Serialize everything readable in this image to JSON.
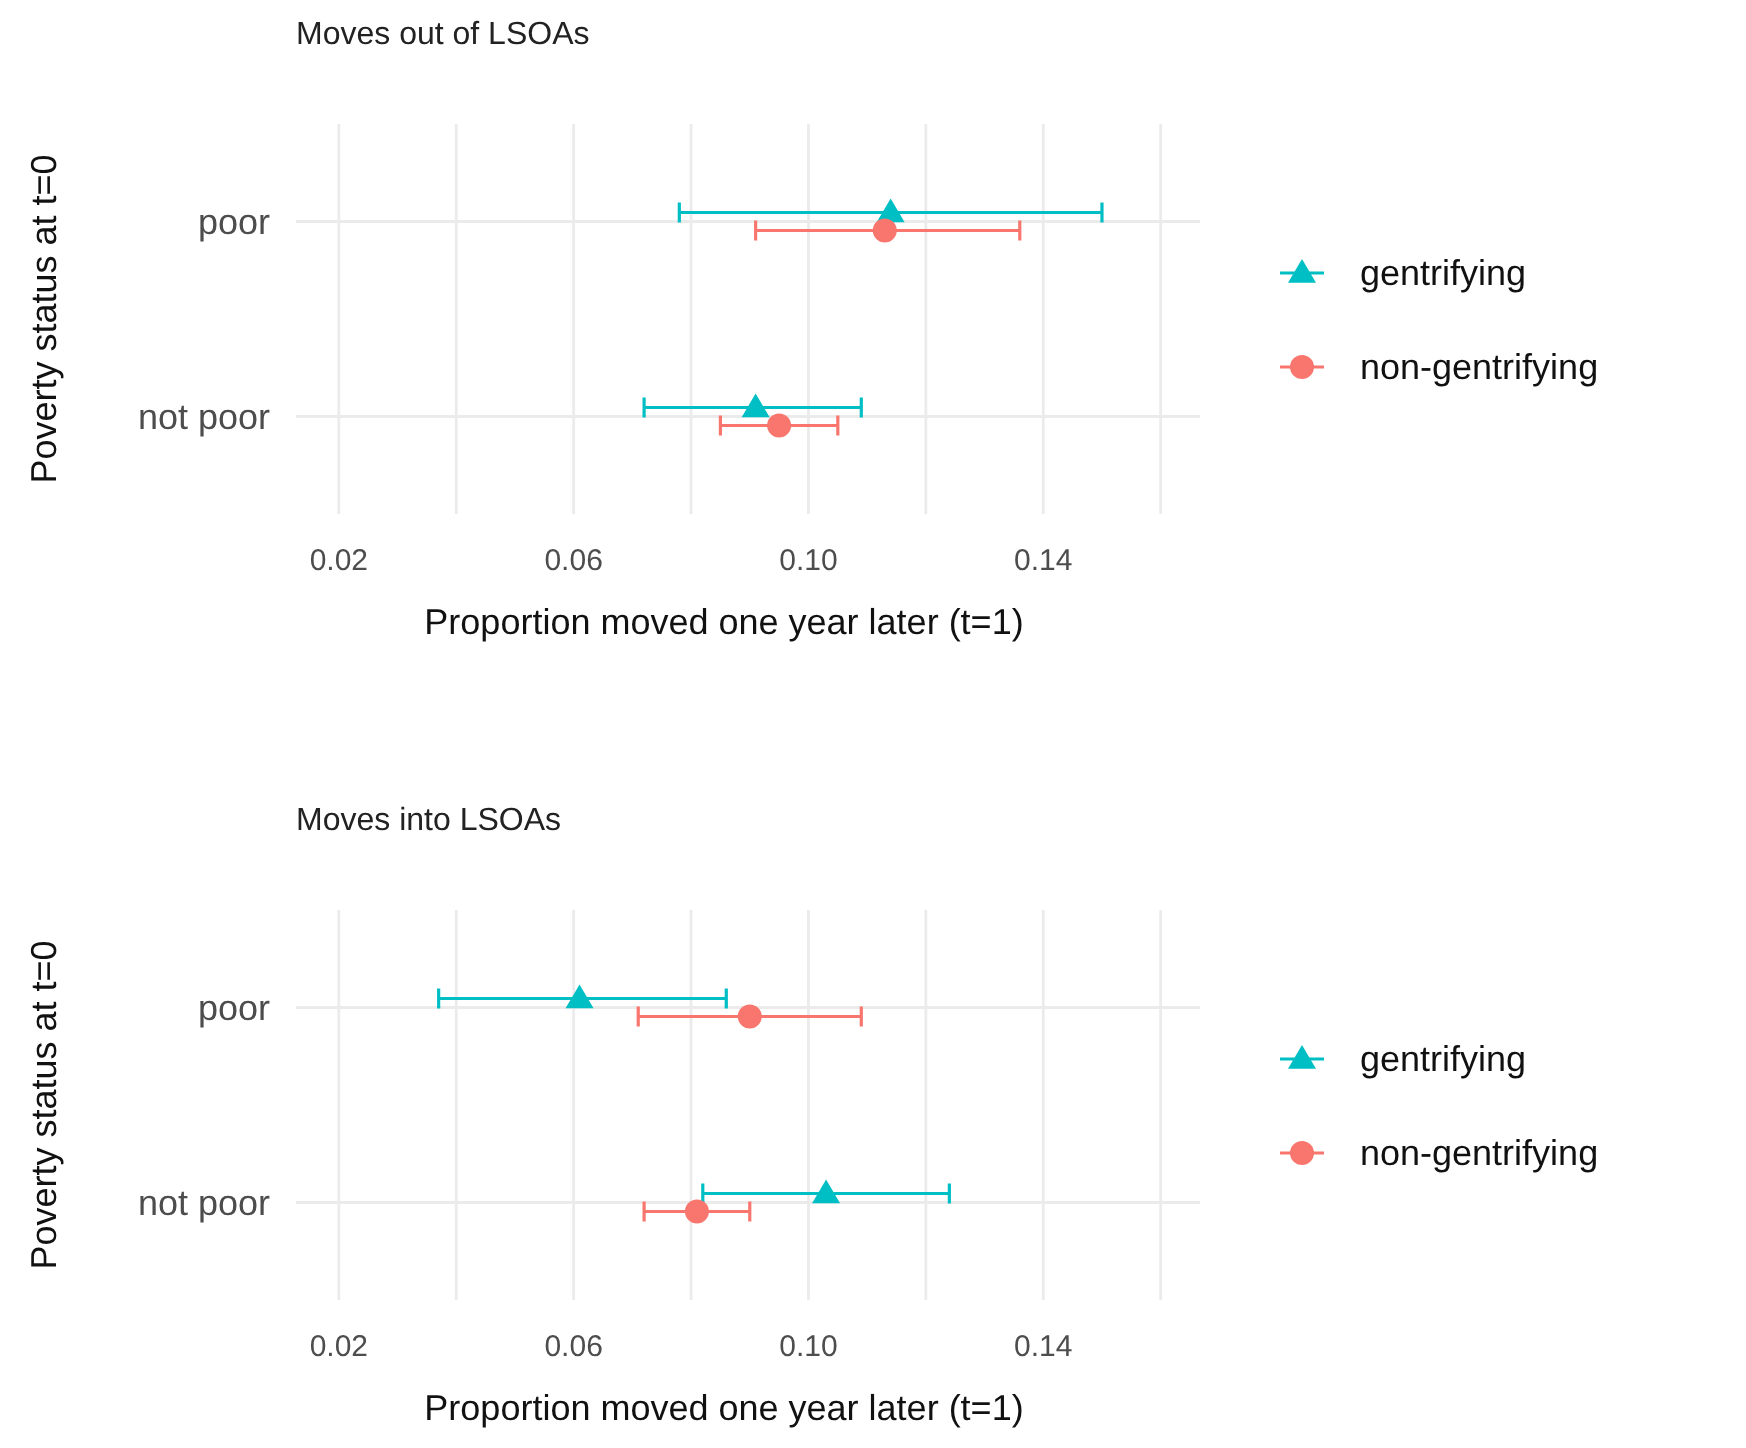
{
  "chart_data": [
    {
      "type": "scatter",
      "orientation": "horizontal",
      "title": "Moves out of LSOAs",
      "xlabel": "Proportion moved one year later (t=1)",
      "ylabel": "Poverty status at t=0",
      "categories": [
        "poor",
        "not poor"
      ],
      "xlim": [
        0.0127,
        0.1667
      ],
      "xticks": [
        0.02,
        {
          "value": 0.04,
          "label": null
        },
        0.06,
        {
          "value": 0.08,
          "label": null
        },
        "0.10",
        {
          "value": 0.12,
          "label": null
        },
        0.14,
        {
          "value": 0.16,
          "label": null
        }
      ],
      "grid": true,
      "legend": "right",
      "series": [
        {
          "name": "gentrifying",
          "color": "#00bfc4",
          "marker": "triangle",
          "values": [
            0.114,
            0.091
          ],
          "errors": [
            [
              0.078,
              0.15
            ],
            [
              0.072,
              0.109
            ]
          ]
        },
        {
          "name": "non-gentrifying",
          "color": "#f8766d",
          "marker": "circle",
          "values": [
            0.113,
            0.095
          ],
          "errors": [
            [
              0.091,
              0.136
            ],
            [
              0.085,
              0.105
            ]
          ]
        }
      ]
    },
    {
      "type": "scatter",
      "orientation": "horizontal",
      "title": "Moves into LSOAs",
      "xlabel": "Proportion moved one year later (t=1)",
      "ylabel": "Poverty status at t=0",
      "categories": [
        "poor",
        "not poor"
      ],
      "xlim": [
        0.0127,
        0.1667
      ],
      "xticks": [
        0.02,
        {
          "value": 0.04,
          "label": null
        },
        0.06,
        {
          "value": 0.08,
          "label": null
        },
        "0.10",
        {
          "value": 0.12,
          "label": null
        },
        0.14,
        {
          "value": 0.16,
          "label": null
        }
      ],
      "grid": true,
      "legend": "right",
      "series": [
        {
          "name": "gentrifying",
          "color": "#00bfc4",
          "marker": "triangle",
          "values": [
            0.061,
            0.103
          ],
          "errors": [
            [
              0.037,
              0.086
            ],
            [
              0.082,
              0.124
            ]
          ]
        },
        {
          "name": "non-gentrifying",
          "color": "#f8766d",
          "marker": "circle",
          "values": [
            0.09,
            0.081
          ],
          "errors": [
            [
              0.071,
              0.109
            ],
            [
              0.072,
              0.09
            ]
          ]
        }
      ]
    }
  ]
}
